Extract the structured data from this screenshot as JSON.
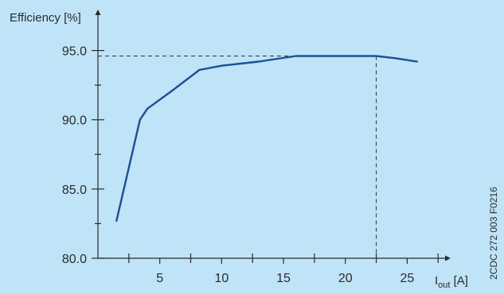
{
  "chart_data": {
    "type": "line",
    "ylabel": "Efficiency [%]",
    "xlabel_main": "I",
    "xlabel_sub": "out",
    "xlabel_unit": " [A]",
    "xlim": [
      0,
      28
    ],
    "ylim": [
      80,
      97.5
    ],
    "x_ticks_labeled": [
      5,
      10,
      15,
      20,
      25
    ],
    "x_tick_labels": [
      "5",
      "10",
      "15",
      "20",
      "25"
    ],
    "x_ticks_minor": [
      2.5,
      7.5,
      12.5,
      17.5,
      22.5,
      27.5
    ],
    "y_ticks_labeled": [
      80,
      85,
      90,
      95
    ],
    "y_tick_labels": [
      "80.0",
      "85.0",
      "90.0",
      "95.0"
    ],
    "y_ticks_minor": [
      82.5,
      87.5,
      92.5
    ],
    "series": [
      {
        "x": [
          1.5,
          3.4,
          4.0,
          6.0,
          8.2,
          10.0,
          13.0,
          16.0,
          18.0,
          20.0,
          22.5,
          24.0,
          25.8
        ],
        "y": [
          82.7,
          90.0,
          90.8,
          92.1,
          93.6,
          93.9,
          94.2,
          94.6,
          94.6,
          94.6,
          94.6,
          94.45,
          94.2
        ]
      }
    ],
    "reference_point": {
      "x": 22.5,
      "y": 94.6
    },
    "grid": false,
    "legend": "none",
    "colors": {
      "background": "#bfe3f7",
      "line": "#1d4e96",
      "axis": "#2b2b2b"
    },
    "side_code": "2CDC 272 003 F0216"
  }
}
